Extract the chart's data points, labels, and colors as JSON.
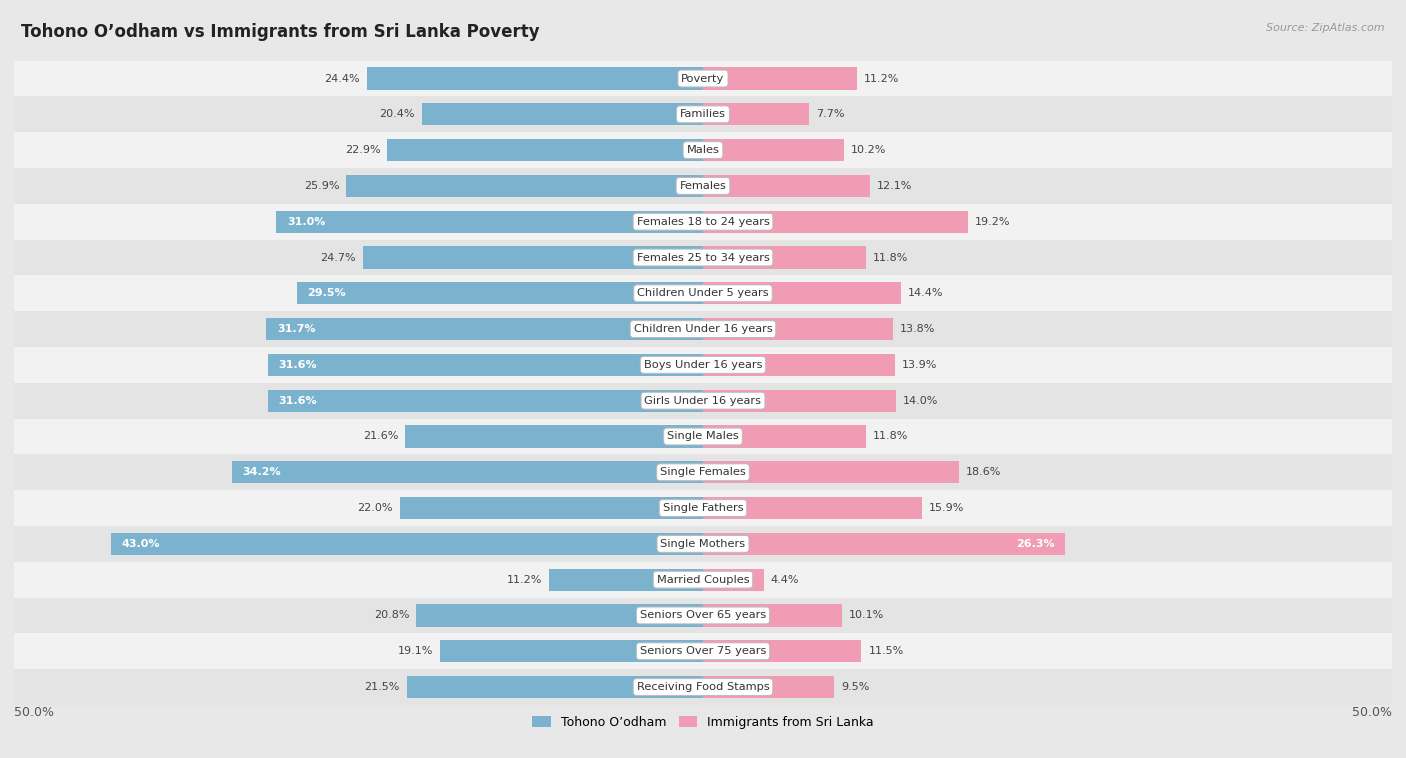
{
  "title": "Tohono O’odham vs Immigrants from Sri Lanka Poverty",
  "source": "Source: ZipAtlas.com",
  "categories": [
    "Poverty",
    "Families",
    "Males",
    "Females",
    "Females 18 to 24 years",
    "Females 25 to 34 years",
    "Children Under 5 years",
    "Children Under 16 years",
    "Boys Under 16 years",
    "Girls Under 16 years",
    "Single Males",
    "Single Females",
    "Single Fathers",
    "Single Mothers",
    "Married Couples",
    "Seniors Over 65 years",
    "Seniors Over 75 years",
    "Receiving Food Stamps"
  ],
  "left_values": [
    24.4,
    20.4,
    22.9,
    25.9,
    31.0,
    24.7,
    29.5,
    31.7,
    31.6,
    31.6,
    21.6,
    34.2,
    22.0,
    43.0,
    11.2,
    20.8,
    19.1,
    21.5
  ],
  "right_values": [
    11.2,
    7.7,
    10.2,
    12.1,
    19.2,
    11.8,
    14.4,
    13.8,
    13.9,
    14.0,
    11.8,
    18.6,
    15.9,
    26.3,
    4.4,
    10.1,
    11.5,
    9.5
  ],
  "left_color": "#7bb3cf",
  "right_color": "#f09cb5",
  "bg_color": "#e8e8e8",
  "row_bg_even": "#f2f2f2",
  "row_bg_odd": "#e4e4e4",
  "max_val": 50.0,
  "legend_left": "Tohono O’odham",
  "legend_right": "Immigrants from Sri Lanka",
  "white_text_threshold": 26.0
}
